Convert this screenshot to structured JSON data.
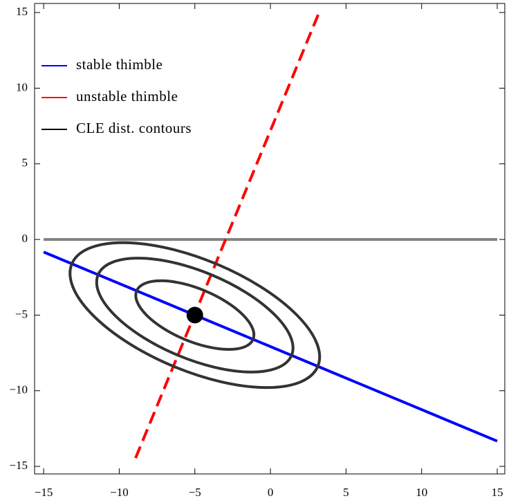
{
  "chart_data": {
    "type": "line",
    "xlim": [
      -15.6,
      15.5
    ],
    "ylim": [
      -15.5,
      15.6
    ],
    "xticks": [
      {
        "value": -15,
        "label": "−15"
      },
      {
        "value": -10,
        "label": "−10"
      },
      {
        "value": -5,
        "label": "−5"
      },
      0,
      5,
      10,
      15
    ],
    "yticks": [
      {
        "value": -15,
        "label": "−15"
      },
      {
        "value": -10,
        "label": "−10"
      },
      {
        "value": -5,
        "label": "−5"
      },
      0,
      5,
      10,
      15
    ],
    "series": [
      {
        "name": "stable thimble",
        "color": "#0000ff",
        "dashed": false,
        "x": [
          -15,
          15
        ],
        "values": [
          -0.83,
          -13.33
        ]
      },
      {
        "name": "unstable thimble",
        "color": "#ff0000",
        "dashed": true,
        "x": [
          -8.92,
          3.29
        ],
        "values": [
          -14.45,
          15.18
        ]
      },
      {
        "name": "CLE dist. contours",
        "color": "#000000",
        "contour_color": "#333333",
        "center": [
          -5,
          -5
        ],
        "angle": -22.6,
        "semi_axes": [
          [
            8.81,
            3.67
          ],
          [
            6.93,
            2.88
          ],
          [
            4.17,
            1.74
          ]
        ]
      }
    ],
    "reference_line": {
      "color": "#808080",
      "x": [
        -15,
        15
      ],
      "values": [
        0,
        0
      ]
    },
    "point": {
      "color": "#000000",
      "x": -5,
      "y": -5
    },
    "legend": "upper left"
  }
}
